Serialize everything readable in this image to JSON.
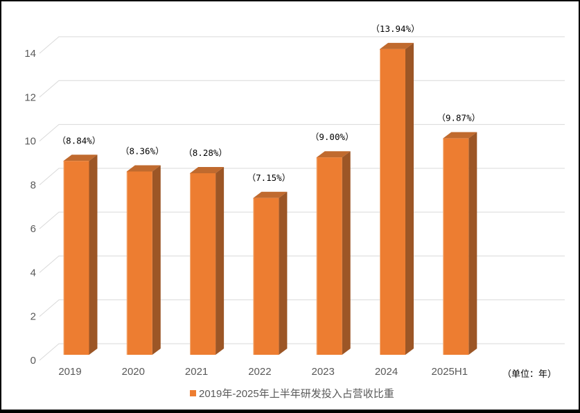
{
  "chart_data": {
    "type": "bar",
    "projection": "3d",
    "legend": "2019年-2025年上半年研发投入占营收比重",
    "legend_position": "bottom",
    "unit_note": "（单位：年）",
    "categories": [
      "2019",
      "2020",
      "2021",
      "2022",
      "2023",
      "2024",
      "2025H1"
    ],
    "series": [
      {
        "name": "2019年-2025年上半年研发投入占营收比重",
        "values": [
          8.84,
          8.36,
          8.28,
          7.15,
          9.0,
          13.94,
          9.87
        ]
      }
    ],
    "data_labels": [
      "（8.84%）",
      "（8.36%）",
      "（8.28%）",
      "（7.15%）",
      "（9.00%）",
      "（13.94%）",
      "（9.87%）"
    ],
    "y_ticks": [
      0,
      2,
      4,
      6,
      8,
      10,
      12,
      14
    ],
    "ylim": [
      0,
      14
    ],
    "grid": true,
    "colors": {
      "bar_front": "#ED7D31",
      "bar_top": "#C06A2E",
      "bar_side": "#9C5626",
      "bar_edge_highlight": "#F4BE93",
      "gridline": "#D9D9D9",
      "axis_text": "#595959",
      "data_label_text": "#000000",
      "legend_text": "#595959",
      "frame_border": "#000000",
      "background": "#FFFFFF"
    }
  }
}
